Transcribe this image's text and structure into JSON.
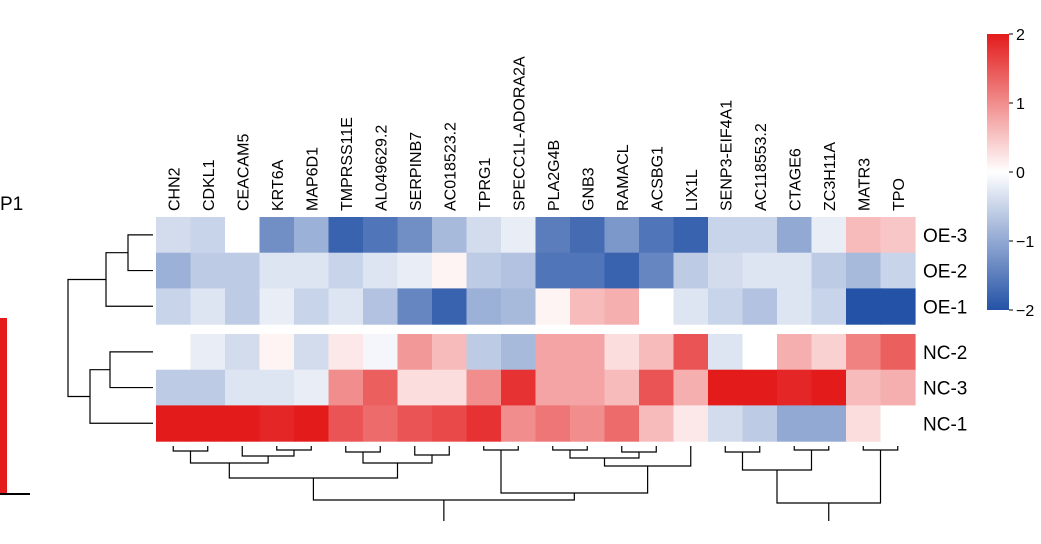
{
  "chart_data": {
    "type": "heatmap",
    "columns": [
      "CHN2",
      "CDKL1",
      "CEACAM5",
      "KRT6A",
      "MAP6D1",
      "TMPRSS11E",
      "AL049629.2",
      "SERPINB7",
      "AC018523.2",
      "TPRG1",
      "SPECC1L-ADORA2A",
      "PLA2G4B",
      "GNB3",
      "RAMACL",
      "ACSBG1",
      "LIX1L",
      "SENP3-EIF4A1",
      "AC118553.2",
      "CTAGE6",
      "ZC3H11A",
      "MATR3",
      "TPO"
    ],
    "rows": [
      "OE-3",
      "OE-2",
      "OE-1",
      "NC-2",
      "NC-3",
      "NC-1"
    ],
    "values": [
      [
        -0.4,
        -0.5,
        0.0,
        -1.3,
        -0.9,
        -1.8,
        -1.6,
        -1.3,
        -0.8,
        -0.4,
        -0.2,
        -1.5,
        -1.7,
        -1.2,
        -1.6,
        -1.8,
        -0.5,
        -0.5,
        -1.0,
        -0.2,
        0.6,
        0.5
      ],
      [
        -0.9,
        -0.6,
        -0.6,
        -0.3,
        -0.3,
        -0.5,
        -0.3,
        -0.2,
        0.1,
        -0.6,
        -0.7,
        -1.6,
        -1.6,
        -1.8,
        -1.4,
        -0.6,
        -0.4,
        -0.3,
        -0.3,
        -0.6,
        -0.8,
        -0.5
      ],
      [
        -0.5,
        -0.3,
        -0.6,
        -0.2,
        -0.5,
        -0.3,
        -0.7,
        -1.4,
        -1.8,
        -0.9,
        -0.8,
        0.1,
        0.6,
        0.7,
        0.0,
        -0.3,
        -0.5,
        -0.7,
        -0.3,
        -0.5,
        -2.0,
        -2.0
      ],
      [
        0.0,
        -0.2,
        -0.4,
        0.1,
        -0.4,
        0.2,
        -0.1,
        0.9,
        0.6,
        -0.6,
        -0.8,
        0.8,
        0.8,
        0.3,
        0.6,
        1.5,
        -0.3,
        0.0,
        0.7,
        0.4,
        1.1,
        1.4
      ],
      [
        -0.6,
        -0.6,
        -0.3,
        -0.3,
        -0.2,
        1.0,
        1.4,
        0.3,
        0.3,
        1.0,
        1.8,
        0.8,
        0.8,
        0.6,
        1.5,
        0.7,
        2.0,
        2.0,
        1.9,
        2.0,
        0.6,
        0.7
      ],
      [
        2.0,
        2.0,
        2.0,
        1.9,
        2.0,
        1.5,
        1.3,
        1.5,
        1.6,
        1.8,
        1.0,
        1.2,
        1.0,
        1.3,
        0.6,
        0.2,
        -0.4,
        -0.6,
        -1.0,
        -1.0,
        0.3,
        0.0
      ]
    ],
    "scale": {
      "min": -2,
      "max": 2,
      "ticks": [
        "2",
        "1",
        "0",
        "−1",
        "−2"
      ],
      "low_color": "#2452a6",
      "mid_color": "#ffffff",
      "high_color": "#e31b1b"
    },
    "row_dendrogram": true,
    "column_dendrogram": true,
    "row_gap_after": 2
  },
  "left_panel": {
    "label_fragment": "P1",
    "bar_color": "#e31b1b"
  }
}
